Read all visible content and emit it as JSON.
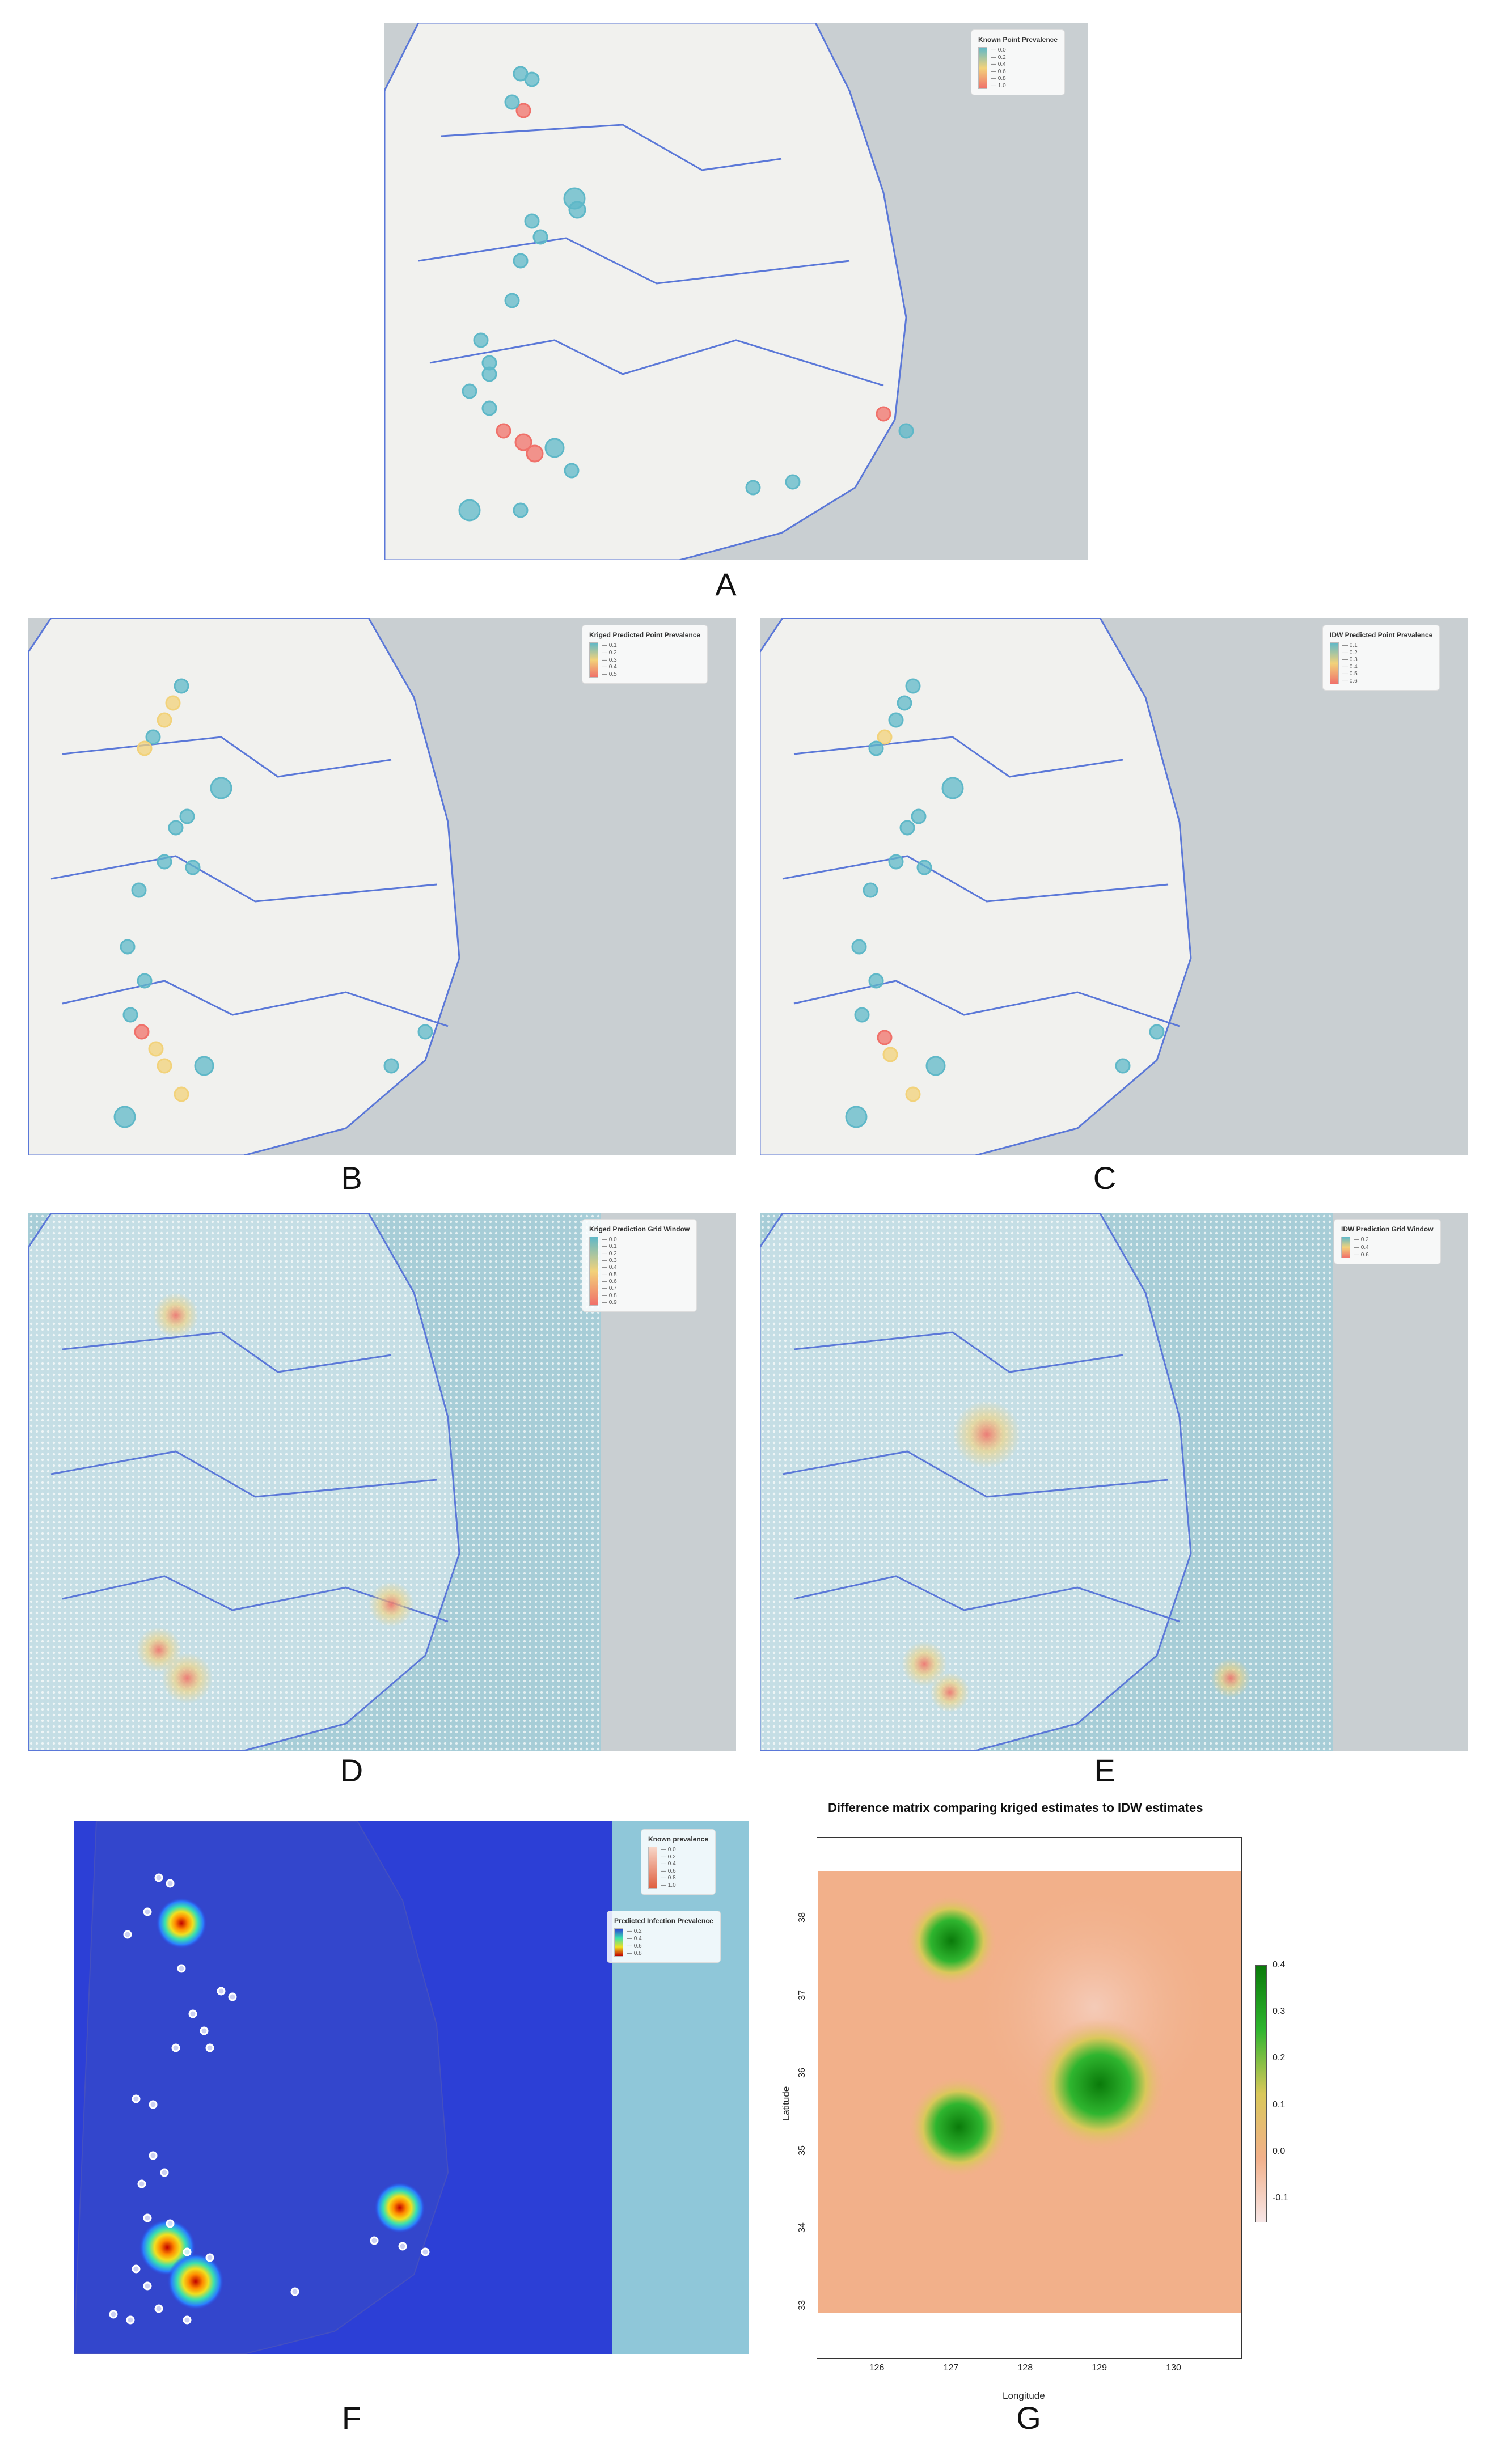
{
  "panels": {
    "A": {
      "label": "A",
      "legend_title": "Known Point Prevalence",
      "ticks": [
        "0.0",
        "0.2",
        "0.4",
        "0.6",
        "0.8",
        "1.0"
      ]
    },
    "B": {
      "label": "B",
      "legend_title": "Kriged Predicted Point Prevalence",
      "ticks": [
        "0.1",
        "0.2",
        "0.3",
        "0.4",
        "0.5"
      ]
    },
    "C": {
      "label": "C",
      "legend_title": "IDW Predicted Point Prevalence",
      "ticks": [
        "0.1",
        "0.2",
        "0.3",
        "0.4",
        "0.5",
        "0.6"
      ]
    },
    "D": {
      "label": "D",
      "legend_title": "Kriged Prediction Grid Window",
      "ticks": [
        "0.0",
        "0.1",
        "0.2",
        "0.3",
        "0.4",
        "0.5",
        "0.6",
        "0.7",
        "0.8",
        "0.9"
      ]
    },
    "E": {
      "label": "E",
      "legend_title": "IDW Prediction Grid Window",
      "ticks": [
        "0.2",
        "0.4",
        "0.6"
      ]
    },
    "F": {
      "label": "F",
      "legend1_title": "Known prevalence",
      "legend1_ticks": [
        "0.0",
        "0.2",
        "0.4",
        "0.6",
        "0.8",
        "1.0"
      ],
      "legend2_title": "Predicted Infection Prevalence",
      "legend2_ticks": [
        "0.2",
        "0.4",
        "0.6",
        "0.8"
      ]
    },
    "G": {
      "label": "G",
      "title": "Difference matrix comparing kriged estimates to IDW estimates",
      "xlabel": "Longitude",
      "ylabel": "Latitude",
      "xticks": [
        "126",
        "127",
        "128",
        "129",
        "130"
      ],
      "yticks": [
        "33",
        "34",
        "35",
        "36",
        "37",
        "38"
      ],
      "colorbar_ticks": [
        "0.4",
        "0.3",
        "0.2",
        "0.1",
        "0.0",
        "-0.1"
      ]
    }
  },
  "colors": {
    "sea": "#b8cfd9",
    "land": "#f1f1ee",
    "border": "#5b78d8",
    "low": "#5fb8c8",
    "mid": "#f2d27a",
    "high": "#f0716a",
    "heat_bg": "#2c3fd6",
    "diff_bg": "#f2b08a",
    "diff_pos": "#1f9a1f"
  },
  "chart_data": {
    "type": "heatmap",
    "title": "Difference matrix comparing kriged estimates to IDW estimates",
    "xlabel": "Longitude",
    "ylabel": "Latitude",
    "xlim": [
      125.2,
      130.9
    ],
    "ylim": [
      32.9,
      38.6
    ],
    "color_range": [
      -0.15,
      0.4
    ],
    "hotspots": [
      {
        "lon": 129.0,
        "lat": 35.85,
        "value": 0.4
      },
      {
        "lon": 127.0,
        "lat": 37.7,
        "value": 0.2
      },
      {
        "lon": 127.1,
        "lat": 35.3,
        "value": 0.25
      }
    ]
  }
}
